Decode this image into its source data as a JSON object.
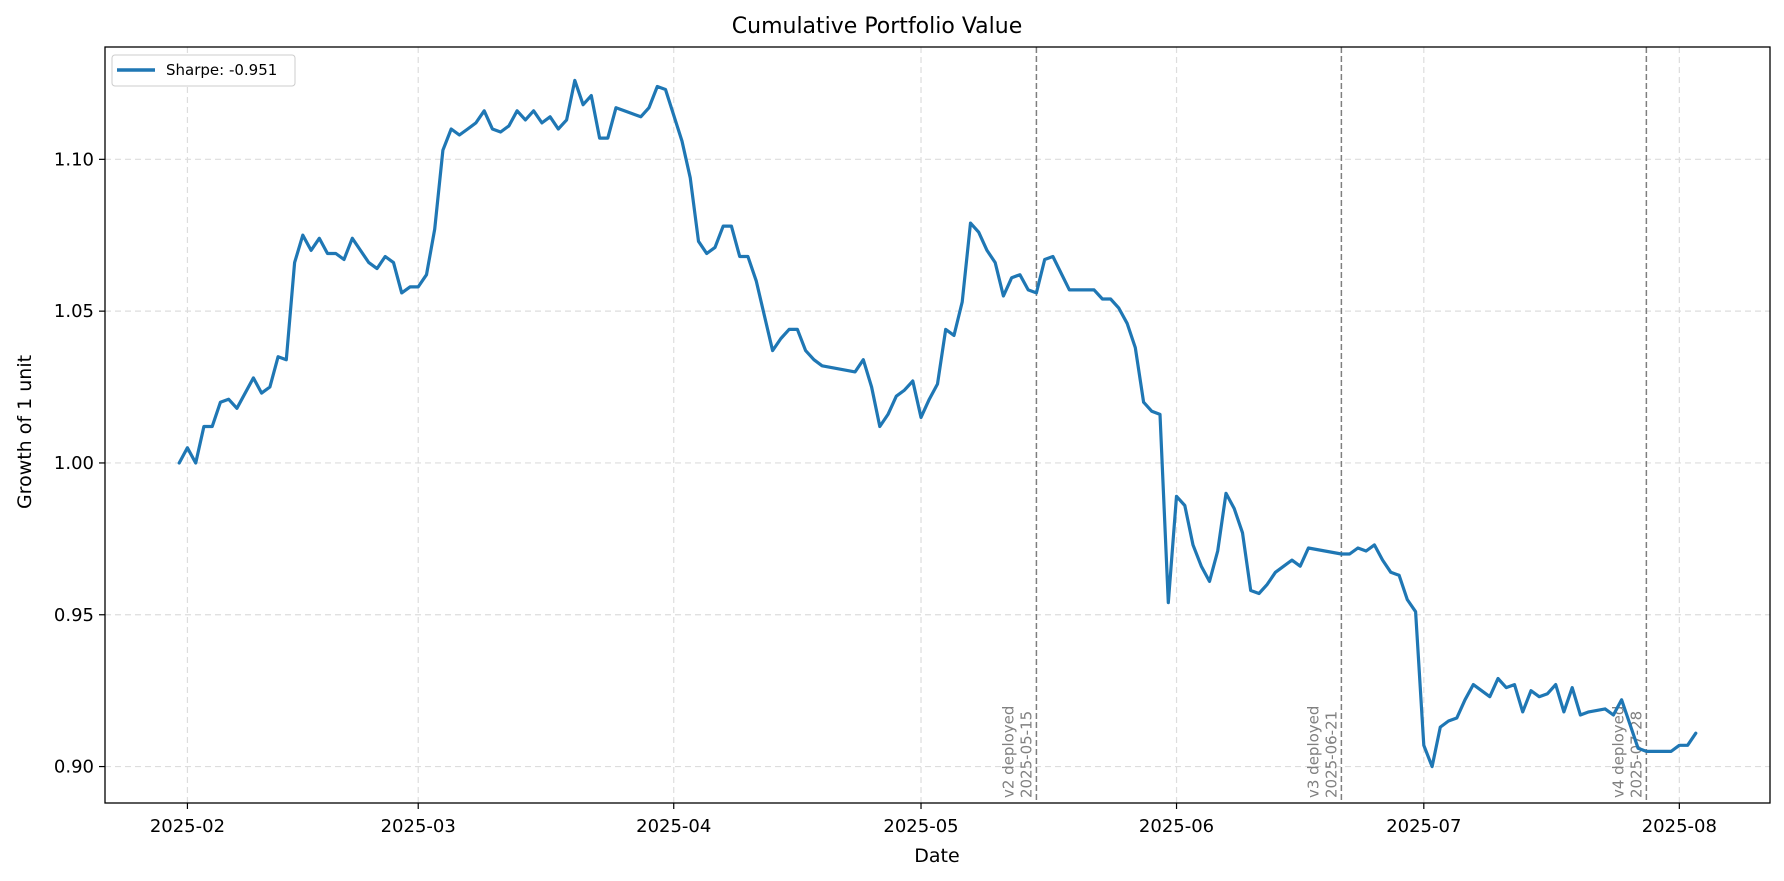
{
  "chart_data": {
    "type": "line",
    "title": "Cumulative Portfolio Value",
    "xlabel": "Date",
    "ylabel": "Growth of 1 unit",
    "xlim": [
      "2025-01-22",
      "2025-08-12"
    ],
    "ylim": [
      0.888,
      1.137
    ],
    "grid": true,
    "legend_position": "upper-left",
    "x_ticks": [
      "2025-02-01",
      "2025-03-01",
      "2025-04-01",
      "2025-05-01",
      "2025-06-01",
      "2025-07-01",
      "2025-08-01"
    ],
    "x_tick_labels": [
      "2025-02",
      "2025-03",
      "2025-04",
      "2025-05",
      "2025-06",
      "2025-07",
      "2025-08"
    ],
    "y_ticks": [
      0.9,
      0.95,
      1.0,
      1.05,
      1.1
    ],
    "y_tick_labels": [
      "0.90",
      "0.95",
      "1.00",
      "1.05",
      "1.10"
    ],
    "series": [
      {
        "name": "Sharpe: -0.951",
        "color": "#1f77b4",
        "points": [
          [
            "2025-01-31",
            1.0
          ],
          [
            "2025-02-01",
            1.005
          ],
          [
            "2025-02-02",
            1.0
          ],
          [
            "2025-02-03",
            1.012
          ],
          [
            "2025-02-04",
            1.012
          ],
          [
            "2025-02-05",
            1.02
          ],
          [
            "2025-02-06",
            1.021
          ],
          [
            "2025-02-07",
            1.018
          ],
          [
            "2025-02-09",
            1.028
          ],
          [
            "2025-02-10",
            1.023
          ],
          [
            "2025-02-11",
            1.025
          ],
          [
            "2025-02-12",
            1.035
          ],
          [
            "2025-02-13",
            1.034
          ],
          [
            "2025-02-14",
            1.066
          ],
          [
            "2025-02-15",
            1.075
          ],
          [
            "2025-02-16",
            1.07
          ],
          [
            "2025-02-17",
            1.074
          ],
          [
            "2025-02-18",
            1.069
          ],
          [
            "2025-02-19",
            1.069
          ],
          [
            "2025-02-20",
            1.067
          ],
          [
            "2025-02-21",
            1.074
          ],
          [
            "2025-02-22",
            1.07
          ],
          [
            "2025-02-23",
            1.066
          ],
          [
            "2025-02-24",
            1.064
          ],
          [
            "2025-02-25",
            1.068
          ],
          [
            "2025-02-26",
            1.066
          ],
          [
            "2025-02-27",
            1.056
          ],
          [
            "2025-02-28",
            1.058
          ],
          [
            "2025-03-01",
            1.058
          ],
          [
            "2025-03-02",
            1.062
          ],
          [
            "2025-03-03",
            1.077
          ],
          [
            "2025-03-04",
            1.103
          ],
          [
            "2025-03-05",
            1.11
          ],
          [
            "2025-03-06",
            1.108
          ],
          [
            "2025-03-07",
            1.11
          ],
          [
            "2025-03-08",
            1.112
          ],
          [
            "2025-03-09",
            1.116
          ],
          [
            "2025-03-10",
            1.11
          ],
          [
            "2025-03-11",
            1.109
          ],
          [
            "2025-03-12",
            1.111
          ],
          [
            "2025-03-13",
            1.116
          ],
          [
            "2025-03-14",
            1.113
          ],
          [
            "2025-03-15",
            1.116
          ],
          [
            "2025-03-16",
            1.112
          ],
          [
            "2025-03-17",
            1.114
          ],
          [
            "2025-03-18",
            1.11
          ],
          [
            "2025-03-19",
            1.113
          ],
          [
            "2025-03-20",
            1.126
          ],
          [
            "2025-03-21",
            1.118
          ],
          [
            "2025-03-22",
            1.121
          ],
          [
            "2025-03-23",
            1.107
          ],
          [
            "2025-03-24",
            1.107
          ],
          [
            "2025-03-25",
            1.117
          ],
          [
            "2025-03-26",
            1.116
          ],
          [
            "2025-03-27",
            1.115
          ],
          [
            "2025-03-28",
            1.114
          ],
          [
            "2025-03-29",
            1.117
          ],
          [
            "2025-03-30",
            1.124
          ],
          [
            "2025-03-31",
            1.123
          ],
          [
            "2025-04-02",
            1.106
          ],
          [
            "2025-04-03",
            1.094
          ],
          [
            "2025-04-04",
            1.073
          ],
          [
            "2025-04-05",
            1.069
          ],
          [
            "2025-04-06",
            1.071
          ],
          [
            "2025-04-07",
            1.078
          ],
          [
            "2025-04-08",
            1.078
          ],
          [
            "2025-04-09",
            1.068
          ],
          [
            "2025-04-10",
            1.068
          ],
          [
            "2025-04-11",
            1.06
          ],
          [
            "2025-04-13",
            1.037
          ],
          [
            "2025-04-14",
            1.041
          ],
          [
            "2025-04-15",
            1.044
          ],
          [
            "2025-04-16",
            1.044
          ],
          [
            "2025-04-17",
            1.037
          ],
          [
            "2025-04-18",
            1.034
          ],
          [
            "2025-04-19",
            1.032
          ],
          [
            "2025-04-23",
            1.03
          ],
          [
            "2025-04-24",
            1.034
          ],
          [
            "2025-04-25",
            1.025
          ],
          [
            "2025-04-26",
            1.012
          ],
          [
            "2025-04-27",
            1.016
          ],
          [
            "2025-04-28",
            1.022
          ],
          [
            "2025-04-29",
            1.024
          ],
          [
            "2025-04-30",
            1.027
          ],
          [
            "2025-05-01",
            1.015
          ],
          [
            "2025-05-02",
            1.021
          ],
          [
            "2025-05-03",
            1.026
          ],
          [
            "2025-05-04",
            1.044
          ],
          [
            "2025-05-05",
            1.042
          ],
          [
            "2025-05-06",
            1.053
          ],
          [
            "2025-05-07",
            1.079
          ],
          [
            "2025-05-08",
            1.076
          ],
          [
            "2025-05-09",
            1.07
          ],
          [
            "2025-05-10",
            1.066
          ],
          [
            "2025-05-11",
            1.055
          ],
          [
            "2025-05-12",
            1.061
          ],
          [
            "2025-05-13",
            1.062
          ],
          [
            "2025-05-14",
            1.057
          ],
          [
            "2025-05-15",
            1.056
          ],
          [
            "2025-05-16",
            1.067
          ],
          [
            "2025-05-17",
            1.068
          ],
          [
            "2025-05-19",
            1.057
          ],
          [
            "2025-05-20",
            1.057
          ],
          [
            "2025-05-21",
            1.057
          ],
          [
            "2025-05-22",
            1.057
          ],
          [
            "2025-05-23",
            1.054
          ],
          [
            "2025-05-24",
            1.054
          ],
          [
            "2025-05-25",
            1.051
          ],
          [
            "2025-05-26",
            1.046
          ],
          [
            "2025-05-27",
            1.038
          ],
          [
            "2025-05-28",
            1.02
          ],
          [
            "2025-05-29",
            1.017
          ],
          [
            "2025-05-30",
            1.016
          ],
          [
            "2025-05-31",
            0.954
          ],
          [
            "2025-06-01",
            0.989
          ],
          [
            "2025-06-02",
            0.986
          ],
          [
            "2025-06-03",
            0.973
          ],
          [
            "2025-06-04",
            0.966
          ],
          [
            "2025-06-05",
            0.961
          ],
          [
            "2025-06-06",
            0.971
          ],
          [
            "2025-06-07",
            0.99
          ],
          [
            "2025-06-08",
            0.985
          ],
          [
            "2025-06-09",
            0.977
          ],
          [
            "2025-06-10",
            0.958
          ],
          [
            "2025-06-11",
            0.957
          ],
          [
            "2025-06-12",
            0.96
          ],
          [
            "2025-06-13",
            0.964
          ],
          [
            "2025-06-14",
            0.966
          ],
          [
            "2025-06-15",
            0.968
          ],
          [
            "2025-06-16",
            0.966
          ],
          [
            "2025-06-17",
            0.972
          ],
          [
            "2025-06-21",
            0.97
          ],
          [
            "2025-06-22",
            0.97
          ],
          [
            "2025-06-23",
            0.972
          ],
          [
            "2025-06-24",
            0.971
          ],
          [
            "2025-06-25",
            0.973
          ],
          [
            "2025-06-26",
            0.968
          ],
          [
            "2025-06-27",
            0.964
          ],
          [
            "2025-06-28",
            0.963
          ],
          [
            "2025-06-29",
            0.955
          ],
          [
            "2025-06-30",
            0.951
          ],
          [
            "2025-07-01",
            0.907
          ],
          [
            "2025-07-02",
            0.9
          ],
          [
            "2025-07-03",
            0.913
          ],
          [
            "2025-07-04",
            0.915
          ],
          [
            "2025-07-05",
            0.916
          ],
          [
            "2025-07-06",
            0.922
          ],
          [
            "2025-07-07",
            0.927
          ],
          [
            "2025-07-09",
            0.923
          ],
          [
            "2025-07-10",
            0.929
          ],
          [
            "2025-07-11",
            0.926
          ],
          [
            "2025-07-12",
            0.927
          ],
          [
            "2025-07-13",
            0.918
          ],
          [
            "2025-07-14",
            0.925
          ],
          [
            "2025-07-15",
            0.923
          ],
          [
            "2025-07-16",
            0.924
          ],
          [
            "2025-07-17",
            0.927
          ],
          [
            "2025-07-18",
            0.918
          ],
          [
            "2025-07-19",
            0.926
          ],
          [
            "2025-07-20",
            0.917
          ],
          [
            "2025-07-21",
            0.918
          ],
          [
            "2025-07-23",
            0.919
          ],
          [
            "2025-07-24",
            0.917
          ],
          [
            "2025-07-25",
            0.922
          ],
          [
            "2025-07-26",
            0.914
          ],
          [
            "2025-07-27",
            0.906
          ],
          [
            "2025-07-28",
            0.905
          ],
          [
            "2025-07-31",
            0.905
          ],
          [
            "2025-08-01",
            0.907
          ],
          [
            "2025-08-02",
            0.907
          ],
          [
            "2025-08-03",
            0.911
          ]
        ]
      }
    ],
    "annotations": [
      {
        "date": "2025-05-15",
        "line1": "v2 deployed",
        "line2": "2025-05-15"
      },
      {
        "date": "2025-06-21",
        "line1": "v3 deployed",
        "line2": "2025-06-21"
      },
      {
        "date": "2025-07-28",
        "line1": "v4 deployed",
        "line2": "2025-07-28"
      }
    ]
  }
}
